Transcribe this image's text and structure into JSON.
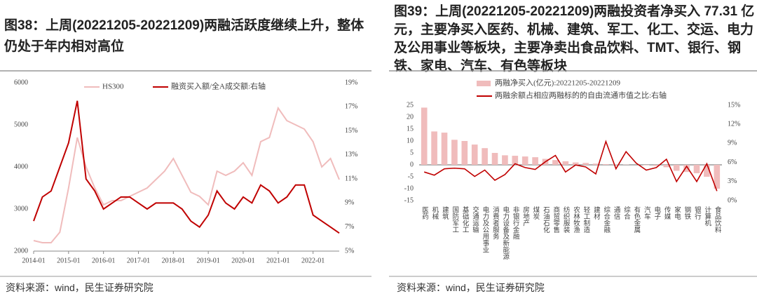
{
  "chart_data": [
    {
      "type": "line",
      "title": "图38：上周(20221205-20221209)两融活跃度继续上升，整体仍处于年内相对高位",
      "source": "资料来源：wind，民生证券研究院",
      "x": [
        "2014-01",
        "2014-04",
        "2014-07",
        "2014-10",
        "2015-01",
        "2015-04",
        "2015-07",
        "2015-10",
        "2016-01",
        "2016-04",
        "2016-07",
        "2016-10",
        "2017-01",
        "2017-04",
        "2017-07",
        "2017-10",
        "2018-01",
        "2018-04",
        "2018-07",
        "2018-10",
        "2019-01",
        "2019-04",
        "2019-07",
        "2019-10",
        "2020-01",
        "2020-04",
        "2020-07",
        "2020-10",
        "2021-01",
        "2021-04",
        "2021-07",
        "2021-10",
        "2022-01",
        "2022-04",
        "2022-07",
        "2022-10"
      ],
      "xticks": [
        "2014-01",
        "2015-01",
        "2016-01",
        "2017-01",
        "2018-01",
        "2019-01",
        "2020-01",
        "2021-01",
        "2022-01"
      ],
      "series": [
        {
          "name": "HS300",
          "color": "#f0bcbc",
          "values": [
            2250,
            2200,
            2200,
            2450,
            3500,
            4700,
            4000,
            3500,
            3100,
            3200,
            3200,
            3300,
            3400,
            3500,
            3700,
            3900,
            4200,
            3800,
            3400,
            3300,
            3100,
            3900,
            3800,
            3900,
            4100,
            3800,
            4600,
            4700,
            5400,
            5100,
            5000,
            4900,
            4600,
            4000,
            4200,
            3700
          ]
        },
        {
          "name": "融资买入额/全A成交额:右轴",
          "color": "#c00000",
          "axis": "y2",
          "values": [
            7.5,
            9.5,
            10,
            12,
            14,
            17.5,
            11,
            10,
            8.5,
            9,
            9.5,
            9.5,
            9,
            8.5,
            9,
            9,
            9,
            8.5,
            7.5,
            7,
            8,
            10,
            9,
            8.5,
            9.5,
            9,
            10.5,
            10,
            9,
            9.5,
            10.5,
            10.5,
            8,
            7.5,
            7,
            6.5
          ]
        }
      ],
      "ylim": [
        2000,
        6000
      ],
      "yticks": [
        2000,
        3000,
        4000,
        5000,
        6000
      ],
      "y2lim": [
        5,
        19
      ],
      "y2ticks": [
        {
          "value": 5,
          "label": "5%"
        },
        {
          "value": 7,
          "label": "7%"
        },
        {
          "value": 9,
          "label": "9%"
        },
        {
          "value": 11,
          "label": "11%"
        },
        {
          "value": 13,
          "label": "13%"
        },
        {
          "value": 15,
          "label": "15%"
        },
        {
          "value": 17,
          "label": "17%"
        },
        {
          "value": 19,
          "label": "19%"
        }
      ]
    },
    {
      "type": "bar",
      "title": "图39：上周(20221205-20221209)两融投资者净买入 77.31 亿元，主要净买入医药、机械、建筑、军工、化工、交运、电力及公用事业等板块，主要净卖出食品饮料、TMT、银行、钢铁、家电、汽车、有色等板块",
      "source": "资料来源：wind，民生证券研究院",
      "categories": [
        "医药",
        "机械",
        "建筑",
        "国防军工",
        "基础化工",
        "交通运输",
        "电力及公用事业",
        "消费者服务",
        "电力设备及新能源",
        "非银行金融",
        "房地产",
        "煤炭",
        "石油石化",
        "商贸零售",
        "纺织服装",
        "农林牧渔",
        "轻工制造",
        "建材",
        "综合金融",
        "通信",
        "综合",
        "有色金属",
        "汽车",
        "电子",
        "传媒",
        "家电",
        "钢铁",
        "银行",
        "计算机",
        "食品饮料"
      ],
      "series": [
        {
          "name": "两融净买入(亿元):20221205-20221209",
          "color": "#f0bcbc",
          "values": [
            24,
            14,
            13.5,
            10.5,
            10,
            8.5,
            7,
            5,
            4,
            3.8,
            3.5,
            3.2,
            2.5,
            2,
            1.5,
            1,
            0.8,
            0.5,
            0.3,
            0.2,
            0.1,
            0,
            -0.2,
            -0.5,
            -1,
            -2.5,
            -3,
            -3.5,
            -5,
            -10
          ]
        },
        {
          "name": "两融余额占相应两融标的的自由流通市值之比:右轴",
          "color": "#c00000",
          "axis": "y2",
          "values": [
            4.5,
            4,
            5,
            5.1,
            5,
            3.8,
            4.8,
            3.2,
            4.1,
            5.8,
            5.2,
            4.9,
            6.1,
            7.1,
            4.5,
            5.6,
            5.3,
            4.2,
            9.3,
            5,
            7.7,
            5.9,
            4.8,
            5.2,
            6.5,
            3,
            5.4,
            3,
            5.8,
            1.5
          ]
        }
      ],
      "ylim": [
        -15,
        25
      ],
      "yticks": [
        -15,
        -10,
        -5,
        0,
        5,
        10,
        15,
        20,
        25
      ],
      "y2lim": [
        0,
        15
      ],
      "y2ticks": [
        {
          "value": 0,
          "label": "0%"
        },
        {
          "value": 3,
          "label": "3%"
        },
        {
          "value": 6,
          "label": "6%"
        },
        {
          "value": 9,
          "label": "9%"
        },
        {
          "value": 12,
          "label": "12%"
        },
        {
          "value": 15,
          "label": "15%"
        }
      ]
    }
  ]
}
